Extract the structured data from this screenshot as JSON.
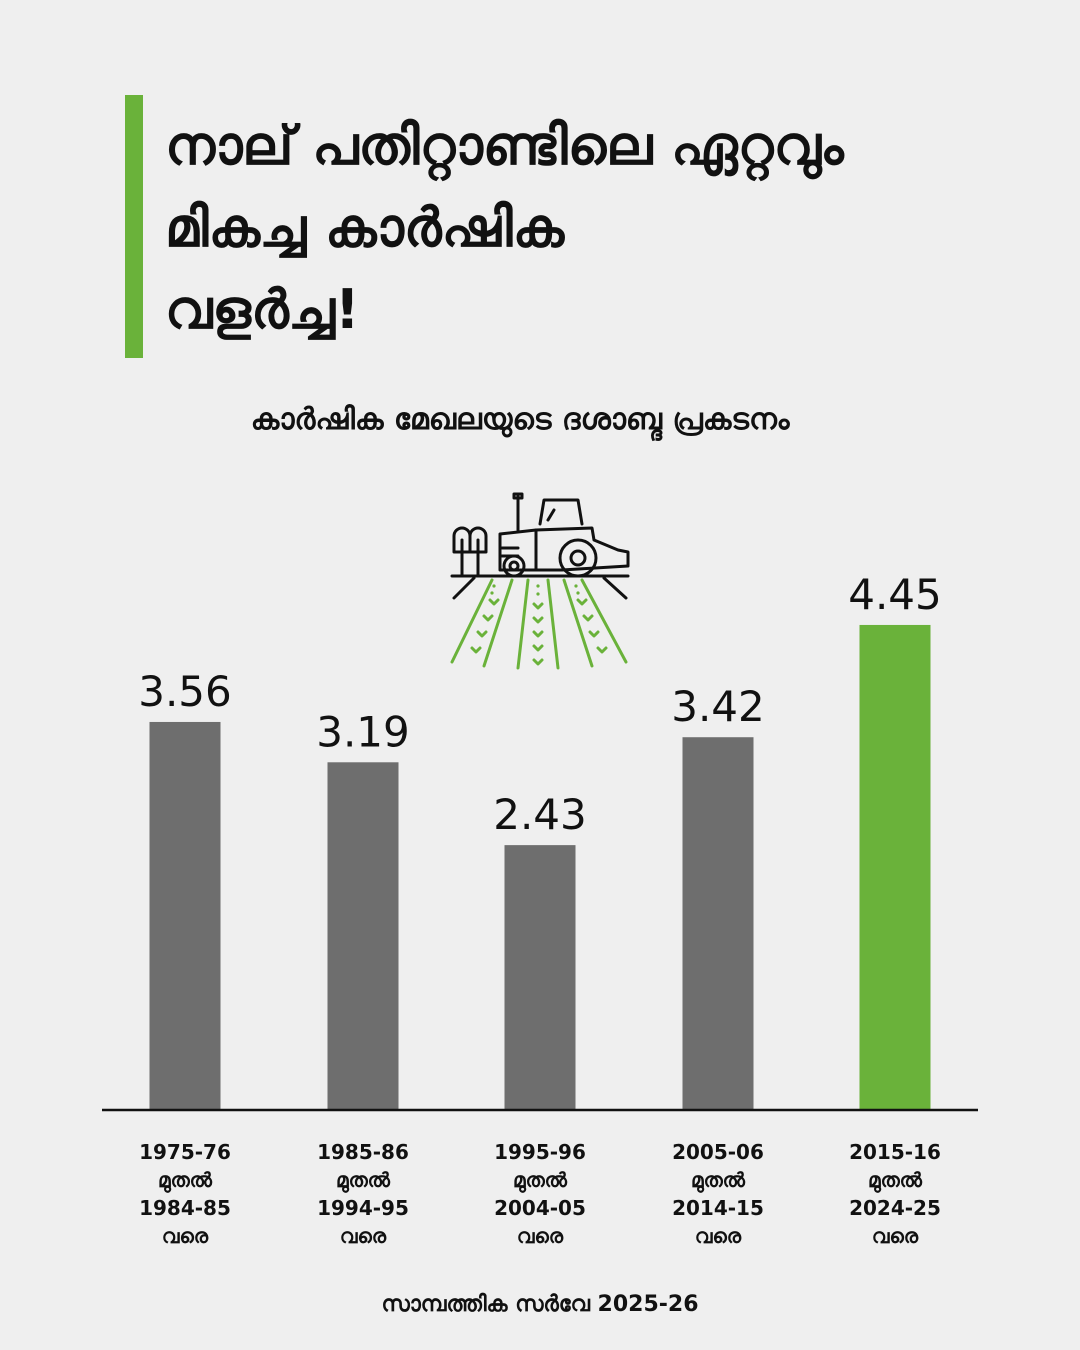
{
  "title_lines": [
    "നാല് പതിറ്റാണ്ടിലെ ഏറ്റവും",
    "മികച്ച കാർഷിക",
    "വളർച്ച!"
  ],
  "subtitle": "കാർഷിക മേഖലയുടെ ദശാബ്ദ പ്രകടനം",
  "source": "സാമ്പത്തിക സർവേ 2025-26",
  "icon": "tractor-field-icon",
  "colors": {
    "accent": "#6ab23a",
    "bar": "#6e6e6e",
    "axis": "#111111",
    "text": "#111111"
  },
  "chart_data": {
    "type": "bar",
    "categories": [
      [
        "1975-76",
        "മുതൽ",
        "1984-85",
        "വരെ"
      ],
      [
        "1985-86",
        "മുതൽ",
        "1994-95",
        "വരെ"
      ],
      [
        "1995-96",
        "മുതൽ",
        "2004-05",
        "വരെ"
      ],
      [
        "2005-06",
        "മുതൽ",
        "2014-15",
        "വരെ"
      ],
      [
        "2015-16",
        "മുതൽ",
        "2024-25",
        "വരെ"
      ]
    ],
    "values": [
      3.56,
      3.19,
      2.43,
      3.42,
      4.45
    ],
    "value_labels": [
      "3.56",
      "3.19",
      "2.43",
      "3.42",
      "4.45"
    ],
    "highlight_index": 4,
    "ylim": [
      0,
      5
    ],
    "grid": false,
    "legend": "none"
  }
}
